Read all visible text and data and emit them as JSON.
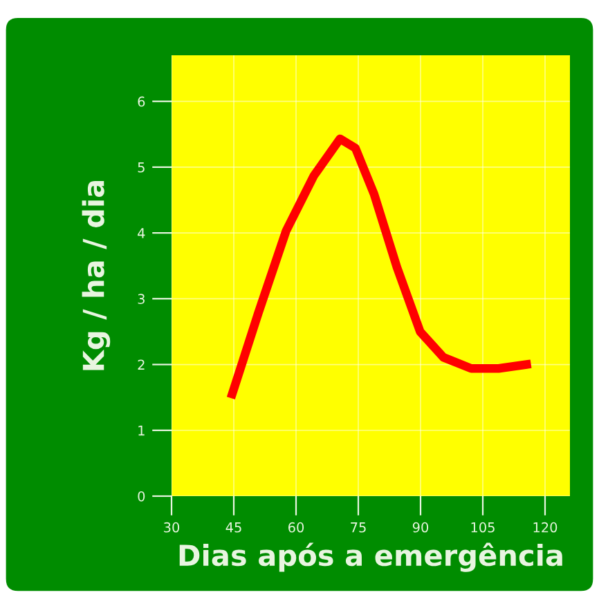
{
  "chart_data": {
    "type": "line",
    "xlabel": "Dias após a emergência",
    "ylabel": "Kg / ha / dia",
    "x": [
      44.3,
      50.9,
      57.6,
      64.3,
      70.6,
      74.3,
      78.8,
      84.3,
      89.9,
      95.5,
      102.2,
      108.8,
      116.6
    ],
    "series": [
      {
        "color": "#ff0000",
        "values": [
          1.49,
          2.78,
          4.03,
          4.87,
          5.43,
          5.29,
          4.59,
          3.48,
          2.5,
          2.11,
          1.94,
          1.94,
          2.01
        ]
      }
    ],
    "xlim": [
      30,
      126
    ],
    "ylim": [
      0,
      6.7
    ],
    "xticks": [
      30,
      45,
      60,
      75,
      90,
      105,
      120
    ],
    "yticks": [
      0,
      1,
      2,
      3,
      4,
      5,
      6
    ],
    "grid": true,
    "marker": "none",
    "line_style": "solid"
  }
}
